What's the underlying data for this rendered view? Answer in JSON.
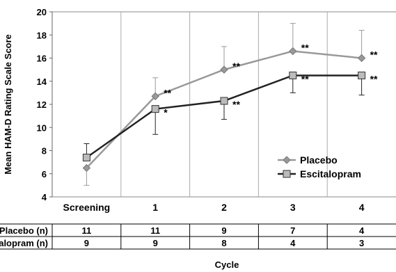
{
  "chart_data": {
    "type": "line",
    "categories": [
      "Screening",
      "1",
      "2",
      "3",
      "4"
    ],
    "ylabel": "Mean HAM-D Rating Scale Score",
    "xlabel": "Cycle",
    "ylim": [
      4,
      20
    ],
    "yticks": [
      4,
      6,
      8,
      10,
      12,
      14,
      16,
      18,
      20
    ],
    "legend_position": "bottom-right",
    "series": [
      {
        "name": "Placebo",
        "color": "#999999",
        "marker": "diamond",
        "values": [
          6.5,
          12.7,
          15.0,
          16.6,
          16.0
        ],
        "error_upper": [
          null,
          14.3,
          17.0,
          19.0,
          18.4
        ],
        "error_lower": [
          5.0,
          null,
          null,
          null,
          null
        ],
        "significance": [
          "",
          "**",
          "**",
          "**",
          "**"
        ]
      },
      {
        "name": "Escitalopram",
        "color": "#222222",
        "marker": "square",
        "values": [
          7.4,
          11.6,
          12.3,
          14.5,
          14.5
        ],
        "error_upper": [
          8.6,
          null,
          null,
          null,
          null
        ],
        "error_lower": [
          null,
          9.4,
          10.7,
          13.0,
          12.8
        ],
        "significance": [
          "",
          "*",
          "**",
          "**",
          "**"
        ]
      }
    ],
    "table": {
      "rows": [
        {
          "label": "Placebo (n)",
          "values": [
            "11",
            "11",
            "9",
            "7",
            "4"
          ]
        },
        {
          "label": "Escitalopram (n)",
          "values": [
            "9",
            "9",
            "8",
            "4",
            "3"
          ]
        }
      ]
    }
  }
}
